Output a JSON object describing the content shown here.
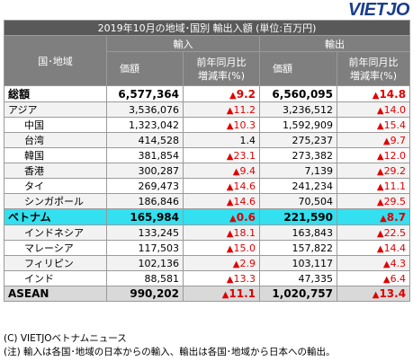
{
  "logo": "VIETJO",
  "table": {
    "title": "2019年10月の地域･国別 輸出入額 (単位:百万円)",
    "country_header": "国･地域",
    "import_header": "輸入",
    "export_header": "輸出",
    "value_header": "価額",
    "change_header_line1": "前年同月比",
    "change_header_line2": "増減率(%)",
    "rows": [
      {
        "name": "総額",
        "imp": "6,577,364",
        "imp_chg": "9.2",
        "imp_neg": true,
        "exp": "6,560,095",
        "exp_chg": "14.8",
        "exp_neg": true,
        "style": "total"
      },
      {
        "name": "アジア",
        "imp": "3,536,076",
        "imp_chg": "11.2",
        "imp_neg": true,
        "exp": "3,236,512",
        "exp_chg": "14.0",
        "exp_neg": true,
        "style": "alt"
      },
      {
        "name": "中国",
        "imp": "1,323,042",
        "imp_chg": "10.3",
        "imp_neg": true,
        "exp": "1,592,909",
        "exp_chg": "15.4",
        "exp_neg": true,
        "style": "ind"
      },
      {
        "name": "台湾",
        "imp": "414,528",
        "imp_chg": "1.4",
        "imp_neg": false,
        "exp": "275,237",
        "exp_chg": "9.7",
        "exp_neg": true,
        "style": "ind-alt"
      },
      {
        "name": "韓国",
        "imp": "381,854",
        "imp_chg": "23.1",
        "imp_neg": true,
        "exp": "273,382",
        "exp_chg": "12.0",
        "exp_neg": true,
        "style": "ind"
      },
      {
        "name": "香港",
        "imp": "300,287",
        "imp_chg": "9.4",
        "imp_neg": true,
        "exp": "7,139",
        "exp_chg": "29.2",
        "exp_neg": true,
        "style": "ind-alt"
      },
      {
        "name": "タイ",
        "imp": "269,473",
        "imp_chg": "14.6",
        "imp_neg": true,
        "exp": "241,234",
        "exp_chg": "11.1",
        "exp_neg": true,
        "style": "ind"
      },
      {
        "name": "シンガポール",
        "imp": "186,846",
        "imp_chg": "14.6",
        "imp_neg": true,
        "exp": "70,504",
        "exp_chg": "29.5",
        "exp_neg": true,
        "style": "ind-alt"
      },
      {
        "name": "ベトナム",
        "imp": "165,984",
        "imp_chg": "0.6",
        "imp_neg": true,
        "exp": "221,590",
        "exp_chg": "8.7",
        "exp_neg": true,
        "style": "vn"
      },
      {
        "name": "インドネシア",
        "imp": "133,245",
        "imp_chg": "18.1",
        "imp_neg": true,
        "exp": "163,843",
        "exp_chg": "22.5",
        "exp_neg": true,
        "style": "ind-alt"
      },
      {
        "name": "マレーシア",
        "imp": "117,503",
        "imp_chg": "15.0",
        "imp_neg": true,
        "exp": "157,822",
        "exp_chg": "14.4",
        "exp_neg": true,
        "style": "ind"
      },
      {
        "name": "フィリピン",
        "imp": "102,136",
        "imp_chg": "2.9",
        "imp_neg": true,
        "exp": "103,117",
        "exp_chg": "4.3",
        "exp_neg": true,
        "style": "ind-alt"
      },
      {
        "name": "インド",
        "imp": "88,581",
        "imp_chg": "13.3",
        "imp_neg": true,
        "exp": "47,335",
        "exp_chg": "6.4",
        "exp_neg": true,
        "style": "ind"
      },
      {
        "name": "ASEAN",
        "imp": "990,202",
        "imp_chg": "11.1",
        "imp_neg": true,
        "exp": "1,020,757",
        "exp_chg": "13.4",
        "exp_neg": true,
        "style": "asean"
      }
    ]
  },
  "notes": {
    "copyright": "(C) VIETJOベトナムニュース",
    "note": "(注) 輸入は各国･地域の日本からの輸入、輸出は各国･地域から日本への輸出。"
  },
  "colors": {
    "negative": "#e00000",
    "header": "#7f7f7f",
    "title": "#595959",
    "vietnam_highlight": "#33e0f0",
    "logo": "#1a3d8f"
  }
}
